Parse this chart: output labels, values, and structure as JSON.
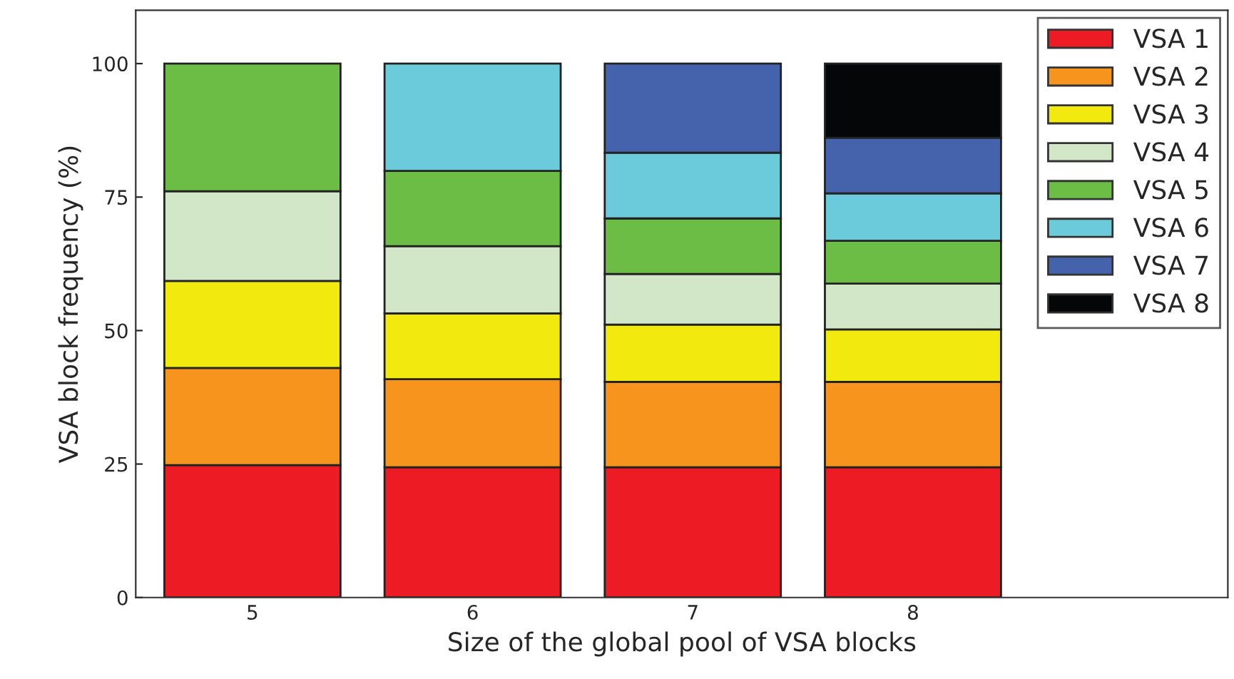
{
  "chart_data": {
    "type": "bar",
    "stacked": true,
    "xlabel": "Size of the global pool of VSA blocks",
    "ylabel": "VSA block frequency (%)",
    "categories": [
      "5",
      "6",
      "7",
      "8"
    ],
    "series": [
      {
        "name": "VSA 1",
        "color": "#ed1c24",
        "values": [
          24.8,
          24.4,
          24.4,
          24.4
        ]
      },
      {
        "name": "VSA 2",
        "color": "#f7941d",
        "values": [
          18.2,
          16.5,
          16.0,
          16.0
        ]
      },
      {
        "name": "VSA 3",
        "color": "#f2ea0f",
        "values": [
          16.3,
          12.3,
          10.7,
          9.8
        ]
      },
      {
        "name": "VSA 4",
        "color": "#d2e7c8",
        "values": [
          16.8,
          12.6,
          9.5,
          8.6
        ]
      },
      {
        "name": "VSA 5",
        "color": "#6cbd45",
        "values": [
          23.9,
          14.1,
          10.4,
          8.0
        ]
      },
      {
        "name": "VSA 6",
        "color": "#6bcbdb",
        "values": [
          null,
          20.1,
          12.3,
          8.9
        ]
      },
      {
        "name": "VSA 7",
        "color": "#4563ad",
        "values": [
          null,
          null,
          16.7,
          10.4
        ]
      },
      {
        "name": "VSA 8",
        "color": "#050608",
        "values": [
          null,
          null,
          null,
          13.9
        ]
      }
    ],
    "ylim": [
      0,
      110
    ],
    "yticks": [
      0,
      25,
      50,
      75,
      100
    ],
    "grid": false,
    "legend": "top right"
  }
}
